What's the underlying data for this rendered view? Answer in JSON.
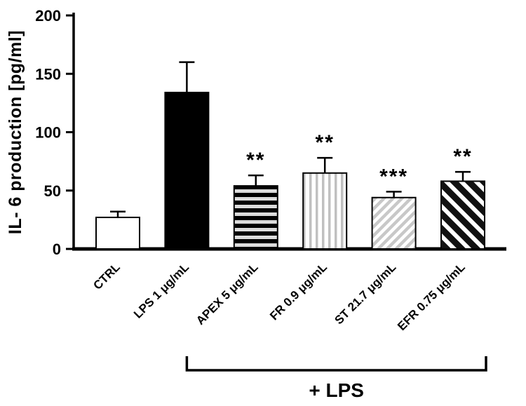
{
  "chart_data": {
    "type": "bar",
    "title": "",
    "ylabel": "IL- 6 production [pg/ml]",
    "xlabel": "",
    "ylim": [
      0,
      200
    ],
    "yticks": [
      0,
      50,
      100,
      150,
      200
    ],
    "grid": false,
    "legend": "none",
    "categories": [
      "CTRL",
      "LPS 1 μg/mL",
      "APEX 5 μg/mL",
      "FR 0.9 μg/mL",
      "ST 21.7 μg/mL",
      "EFR 0.75 μg/mL"
    ],
    "values": [
      27,
      134,
      54,
      65,
      44,
      58
    ],
    "errors_plus": [
      5,
      26,
      9,
      13,
      5,
      8
    ],
    "error_bar_style": "upper-cap",
    "significance": [
      "",
      "",
      "**",
      "**",
      "***",
      "**"
    ],
    "patterns": [
      "solid-white",
      "solid-black",
      "stripes-horizontal",
      "stripes-vertical",
      "stripes-diagonal-light",
      "stripes-diagonal-dark"
    ],
    "group_annotation": {
      "label": "+ LPS",
      "from_index": 1,
      "to_index": 5
    },
    "colors": {
      "axis": "#000000",
      "bar_border": "#000000",
      "bar_fill_black": "#000000",
      "bar_fill_white": "#ffffff",
      "stripe_light_gray": "#c8c8c8",
      "stripe_on_black": "#dcdcdc",
      "background": "#ffffff"
    }
  }
}
